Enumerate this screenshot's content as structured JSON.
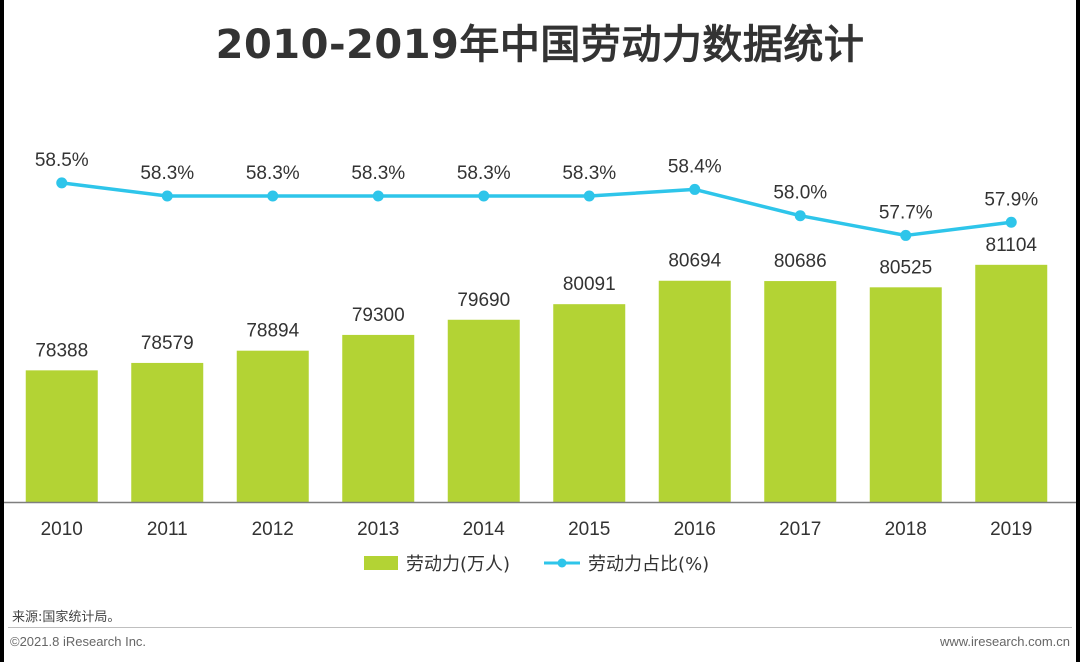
{
  "title": "2010-2019年中国劳动力数据统计",
  "source": "来源:国家统计局。",
  "footer": {
    "copyright": "©2021.8 iResearch Inc.",
    "website": "www.iresearch.com.cn"
  },
  "colors": {
    "bar": "#b3d334",
    "line": "#2ec5ea",
    "axis": "#7f7f7f",
    "text": "#333333"
  },
  "legend": {
    "bar_label": "劳动力(万人)",
    "line_label": "劳动力占比(%)"
  },
  "chart_data": {
    "type": "bar",
    "title": "2010-2019年中国劳动力数据统计",
    "categories": [
      "2010",
      "2011",
      "2012",
      "2013",
      "2014",
      "2015",
      "2016",
      "2017",
      "2018",
      "2019"
    ],
    "series": [
      {
        "name": "劳动力(万人)",
        "type": "bar",
        "values": [
          78388,
          78579,
          78894,
          79300,
          79690,
          80091,
          80694,
          80686,
          80525,
          81104
        ],
        "labels": [
          "78388",
          "78579",
          "78894",
          "79300",
          "79690",
          "80091",
          "80694",
          "80686",
          "80525",
          "81104"
        ]
      },
      {
        "name": "劳动力占比(%)",
        "type": "line",
        "values": [
          58.5,
          58.3,
          58.3,
          58.3,
          58.3,
          58.3,
          58.4,
          58.0,
          57.7,
          57.9
        ],
        "labels": [
          "58.5%",
          "58.3%",
          "58.3%",
          "58.3%",
          "58.3%",
          "58.3%",
          "58.4%",
          "58.0%",
          "57.7%",
          "57.9%"
        ]
      }
    ],
    "bar_axis_range": [
      75000,
      82000
    ],
    "line_axis_range": [
      55.5,
      59.0
    ],
    "legend_position": "bottom",
    "grid": false
  }
}
